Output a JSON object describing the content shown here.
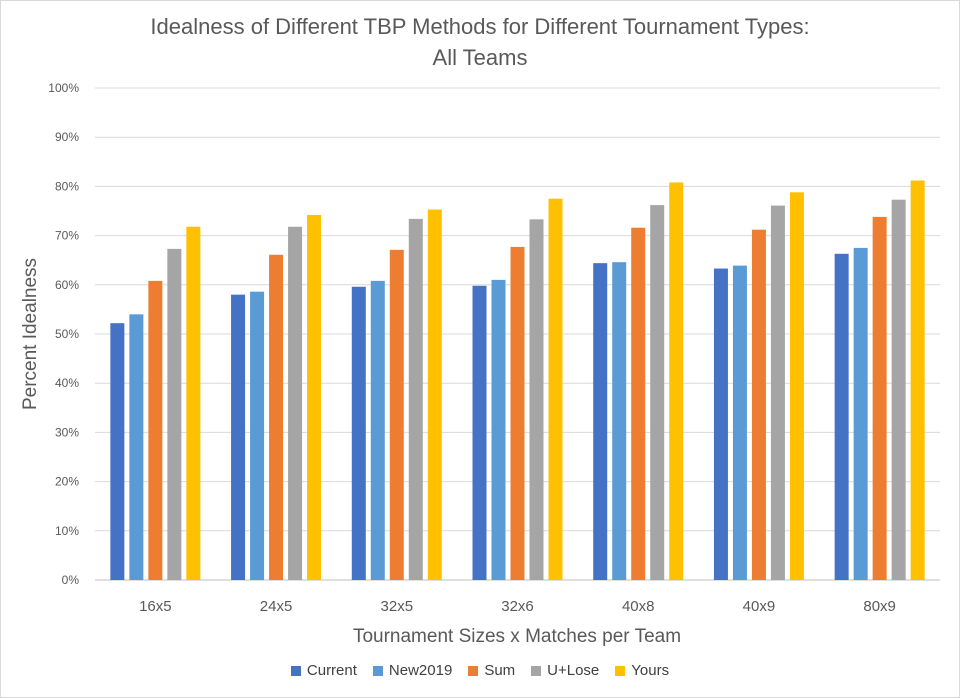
{
  "chart_data": {
    "type": "bar",
    "title": "Idealness of Different TBP Methods for Different Tournament Types:",
    "subtitle": "All Teams",
    "xlabel": "Tournament Sizes x Matches per Team",
    "ylabel": "Percent Idealness",
    "ylim": [
      0,
      100
    ],
    "yticks": [
      "0%",
      "10%",
      "20%",
      "30%",
      "40%",
      "50%",
      "60%",
      "70%",
      "80%",
      "90%",
      "100%"
    ],
    "grid": true,
    "legend_position": "bottom",
    "categories": [
      "16x5",
      "24x5",
      "32x5",
      "32x6",
      "40x8",
      "40x9",
      "80x9"
    ],
    "series": [
      {
        "name": "Current",
        "color": "#4472c4",
        "values": [
          52.2,
          58.0,
          59.6,
          59.8,
          64.4,
          63.3,
          66.3
        ]
      },
      {
        "name": "New2019",
        "color": "#5b9bd5",
        "values": [
          54.0,
          58.6,
          60.8,
          61.0,
          64.6,
          63.9,
          67.5
        ]
      },
      {
        "name": "Sum",
        "color": "#ed7d31",
        "values": [
          60.8,
          66.1,
          67.1,
          67.7,
          71.6,
          71.2,
          73.8
        ]
      },
      {
        "name": "U+Lose",
        "color": "#a5a5a5",
        "values": [
          67.3,
          71.8,
          73.4,
          73.3,
          76.2,
          76.1,
          77.3
        ]
      },
      {
        "name": "Yours",
        "color": "#ffc000",
        "values": [
          71.8,
          74.2,
          75.3,
          77.5,
          80.8,
          78.8,
          81.2
        ]
      }
    ]
  }
}
